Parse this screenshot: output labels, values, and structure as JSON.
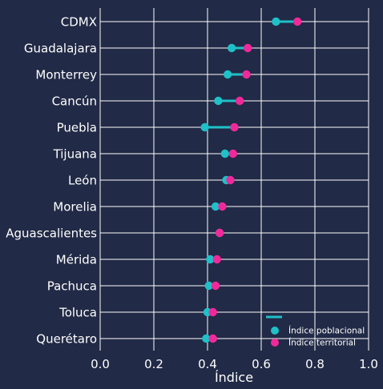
{
  "chart_data": {
    "type": "dumbbell",
    "title": "",
    "xlabel": "Índice",
    "ylabel": "",
    "xlim": [
      0.0,
      1.0
    ],
    "xticks": [
      "0.0",
      "0.2",
      "0.4",
      "0.6",
      "0.8",
      "1.0"
    ],
    "grid": true,
    "legend_position": "bottom-right",
    "colors": {
      "background": "#212a46",
      "poblacional": "#1fc0c7",
      "territorial": "#f0299a",
      "line": "#1fc0c7",
      "grid": "#ffffff",
      "text": "#ffffff"
    },
    "categories": [
      "CDMX",
      "Guadalajara",
      "Monterrey",
      "Cancún",
      "Puebla",
      "Tijuana",
      "León",
      "Morelia",
      "Aguascalientes",
      "Mérida",
      "Pachuca",
      "Toluca",
      "Querétaro"
    ],
    "series": [
      {
        "name": "Índice poblacional",
        "values": [
          0.655,
          0.49,
          0.475,
          0.44,
          0.39,
          0.465,
          0.47,
          0.43,
          0.445,
          0.41,
          0.405,
          0.4,
          0.395
        ]
      },
      {
        "name": "Índice territorial",
        "values": [
          0.735,
          0.55,
          0.545,
          0.52,
          0.5,
          0.495,
          0.485,
          0.455,
          0.445,
          0.435,
          0.43,
          0.42,
          0.42
        ]
      }
    ]
  }
}
